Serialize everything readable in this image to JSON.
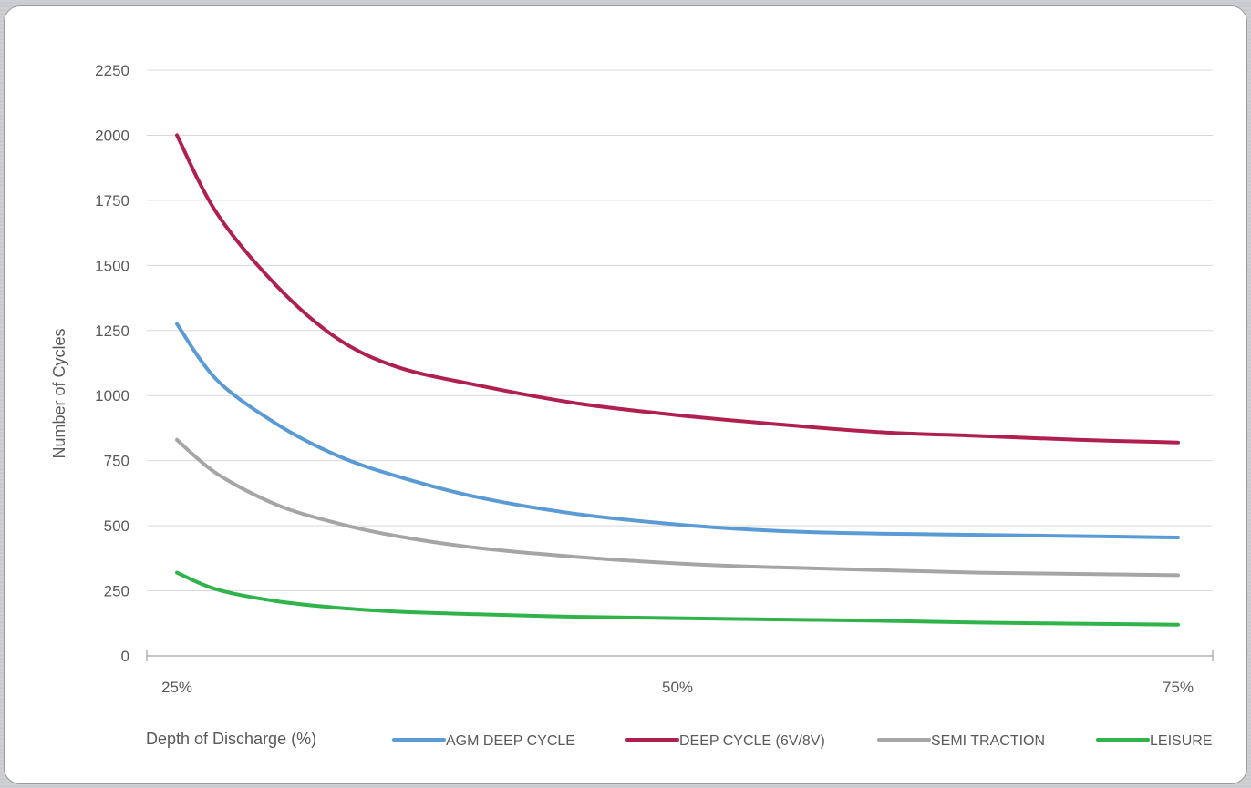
{
  "chart_data": {
    "type": "line",
    "xlabel": "Depth of Discharge (%)",
    "ylabel": "Number of Cycles",
    "x_tick_labels": [
      "25%",
      "50%",
      "75%"
    ],
    "x": [
      25,
      27,
      30,
      33,
      36,
      40,
      45,
      50,
      55,
      60,
      65,
      70,
      75
    ],
    "ylim": [
      0,
      2250
    ],
    "y_ticks": [
      0,
      250,
      500,
      750,
      1000,
      1250,
      1500,
      1750,
      2000,
      2250
    ],
    "grid": true,
    "legend_position": "bottom",
    "series": [
      {
        "name": "AGM DEEP CYCLE",
        "color": "#5b9bd5",
        "values": [
          1275,
          1060,
          890,
          770,
          690,
          610,
          545,
          505,
          480,
          470,
          465,
          460,
          455
        ]
      },
      {
        "name": "DEEP CYCLE (6V/8V)",
        "color": "#b0204e",
        "values": [
          2000,
          1700,
          1420,
          1220,
          1110,
          1040,
          970,
          925,
          890,
          860,
          845,
          830,
          820
        ]
      },
      {
        "name": "SEMI TRACTION",
        "color": "#a5a5a5",
        "values": [
          830,
          700,
          580,
          510,
          460,
          415,
          380,
          355,
          340,
          330,
          320,
          315,
          310
        ]
      },
      {
        "name": "LEISURE",
        "color": "#2fb34a",
        "values": [
          320,
          255,
          210,
          185,
          170,
          160,
          150,
          145,
          140,
          135,
          128,
          124,
          120
        ]
      }
    ]
  }
}
